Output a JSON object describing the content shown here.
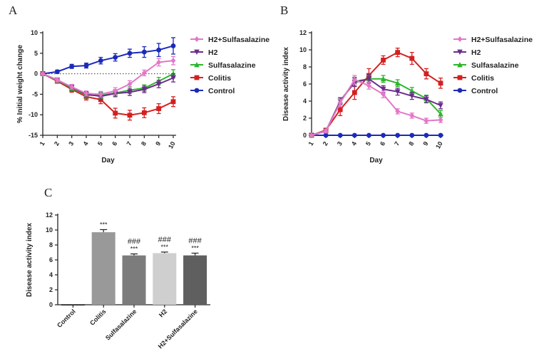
{
  "panels": {
    "a": "A",
    "b": "B",
    "c": "C"
  },
  "chart_data": [
    {
      "type": "line",
      "panel": "A",
      "xlabel": "Day",
      "ylabel": "% Initial weight change",
      "x": [
        1,
        2,
        3,
        4,
        5,
        6,
        7,
        8,
        9,
        10
      ],
      "xticks": [
        "1",
        "2",
        "3",
        "4",
        "5",
        "6",
        "7",
        "8",
        "9",
        "10"
      ],
      "ylim": [
        -15,
        10
      ],
      "yticks": [
        "10",
        "5",
        "0",
        "-5",
        "-10",
        "-15"
      ],
      "reference_line": 0,
      "legend_position": "right",
      "series": [
        {
          "name": "H2+Sulfasalazine",
          "color": "#e377c8",
          "marker": "diamond",
          "values": [
            0,
            -1.5,
            -3.2,
            -4.8,
            -5.0,
            -4.2,
            -2.5,
            0.2,
            2.8,
            3.2
          ],
          "errors": [
            0.2,
            0.5,
            0.6,
            0.6,
            0.7,
            0.8,
            0.8,
            0.7,
            0.9,
            1.0
          ]
        },
        {
          "name": "H2",
          "color": "#6a2c8c",
          "marker": "triangle-down",
          "values": [
            0,
            -1.5,
            -3.3,
            -5.0,
            -5.5,
            -4.8,
            -4.5,
            -3.8,
            -2.5,
            -1.0
          ],
          "errors": [
            0.2,
            0.5,
            0.6,
            0.7,
            0.8,
            0.8,
            0.8,
            0.8,
            0.9,
            1.0
          ]
        },
        {
          "name": "Sulfasalazine",
          "color": "#2cb52c",
          "marker": "triangle-up",
          "values": [
            0,
            -1.6,
            -3.5,
            -5.2,
            -5.3,
            -4.7,
            -4.0,
            -3.5,
            -1.8,
            0.0
          ],
          "errors": [
            0.2,
            0.5,
            0.6,
            0.7,
            0.8,
            0.8,
            0.8,
            0.8,
            0.9,
            1.0
          ]
        },
        {
          "name": "Colitis",
          "color": "#d42020",
          "marker": "square",
          "values": [
            0,
            -1.8,
            -3.8,
            -5.6,
            -6.3,
            -9.6,
            -10.1,
            -9.5,
            -8.5,
            -6.8
          ],
          "errors": [
            0.2,
            0.5,
            0.7,
            0.8,
            1.0,
            1.2,
            1.2,
            1.2,
            1.2,
            1.2
          ]
        },
        {
          "name": "Control",
          "color": "#1c2ab8",
          "marker": "circle",
          "values": [
            0,
            0.5,
            1.8,
            2.0,
            3.2,
            4.0,
            5.0,
            5.3,
            5.8,
            6.8
          ],
          "errors": [
            0.2,
            0.4,
            0.5,
            0.6,
            0.8,
            0.9,
            1.0,
            1.3,
            1.6,
            2.0
          ]
        }
      ]
    },
    {
      "type": "line",
      "panel": "B",
      "xlabel": "Day",
      "ylabel": "Disease activity index",
      "x": [
        1,
        2,
        3,
        4,
        5,
        6,
        7,
        8,
        9,
        10
      ],
      "xticks": [
        "1",
        "2",
        "3",
        "4",
        "5",
        "6",
        "7",
        "8",
        "9",
        "10"
      ],
      "ylim": [
        0,
        12
      ],
      "yticks": [
        "12",
        "10",
        "8",
        "6",
        "4",
        "2",
        "0"
      ],
      "legend_position": "right",
      "series": [
        {
          "name": "H2+Sulfasalazine",
          "color": "#e377c8",
          "marker": "diamond",
          "values": [
            0,
            0.5,
            3.8,
            6.5,
            5.8,
            4.8,
            2.8,
            2.3,
            1.7,
            1.8
          ],
          "errors": [
            0.1,
            0.2,
            0.4,
            0.5,
            0.4,
            0.4,
            0.3,
            0.3,
            0.3,
            0.3
          ]
        },
        {
          "name": "H2",
          "color": "#6a2c8c",
          "marker": "triangle-down",
          "values": [
            0,
            0.5,
            4.0,
            6.2,
            6.6,
            5.4,
            5.1,
            4.6,
            4.2,
            3.5
          ],
          "errors": [
            0.1,
            0.2,
            0.4,
            0.5,
            0.5,
            0.4,
            0.4,
            0.4,
            0.4,
            0.4
          ]
        },
        {
          "name": "Sulfasalazine",
          "color": "#2cb52c",
          "marker": "triangle-up",
          "values": [
            0,
            0.5,
            4.0,
            6.3,
            6.6,
            6.6,
            6.1,
            5.2,
            4.3,
            2.5
          ],
          "errors": [
            0.1,
            0.2,
            0.4,
            0.5,
            0.4,
            0.4,
            0.4,
            0.4,
            0.4,
            0.4
          ]
        },
        {
          "name": "Colitis",
          "color": "#d42020",
          "marker": "square",
          "values": [
            0,
            0.6,
            3.0,
            5.0,
            7.0,
            8.8,
            9.7,
            9.0,
            7.2,
            6.1
          ],
          "errors": [
            0.1,
            0.2,
            0.7,
            0.8,
            0.8,
            0.5,
            0.5,
            0.7,
            0.6,
            0.6
          ]
        },
        {
          "name": "Control",
          "color": "#1c2ab8",
          "marker": "circle",
          "values": [
            0,
            0,
            0,
            0,
            0,
            0,
            0,
            0,
            0,
            0
          ],
          "errors": [
            0,
            0,
            0,
            0,
            0,
            0,
            0,
            0,
            0,
            0
          ]
        }
      ]
    },
    {
      "type": "bar",
      "panel": "C",
      "ylabel": "Disease activity index",
      "categories": [
        "Control",
        "Colitis",
        "Sulfasalazine",
        "H2",
        "H2+Sulfasalazine"
      ],
      "values": [
        0.05,
        9.7,
        6.6,
        6.9,
        6.6
      ],
      "errors": [
        0,
        0.35,
        0.2,
        0.15,
        0.3
      ],
      "colors": [
        "#111111",
        "#999999",
        "#7c7c7c",
        "#cfcfcf",
        "#5f5f5f"
      ],
      "ylim": [
        0,
        12
      ],
      "yticks": [
        "12",
        "10",
        "8",
        "6",
        "4",
        "2",
        "0"
      ],
      "annotations": [
        {
          "category": "Colitis",
          "lines": [
            "***"
          ]
        },
        {
          "category": "Sulfasalazine",
          "lines": [
            "###",
            "***"
          ]
        },
        {
          "category": "H2",
          "lines": [
            "###",
            "***"
          ]
        },
        {
          "category": "H2+Sulfasalazine",
          "lines": [
            "###",
            "***"
          ]
        }
      ]
    }
  ]
}
